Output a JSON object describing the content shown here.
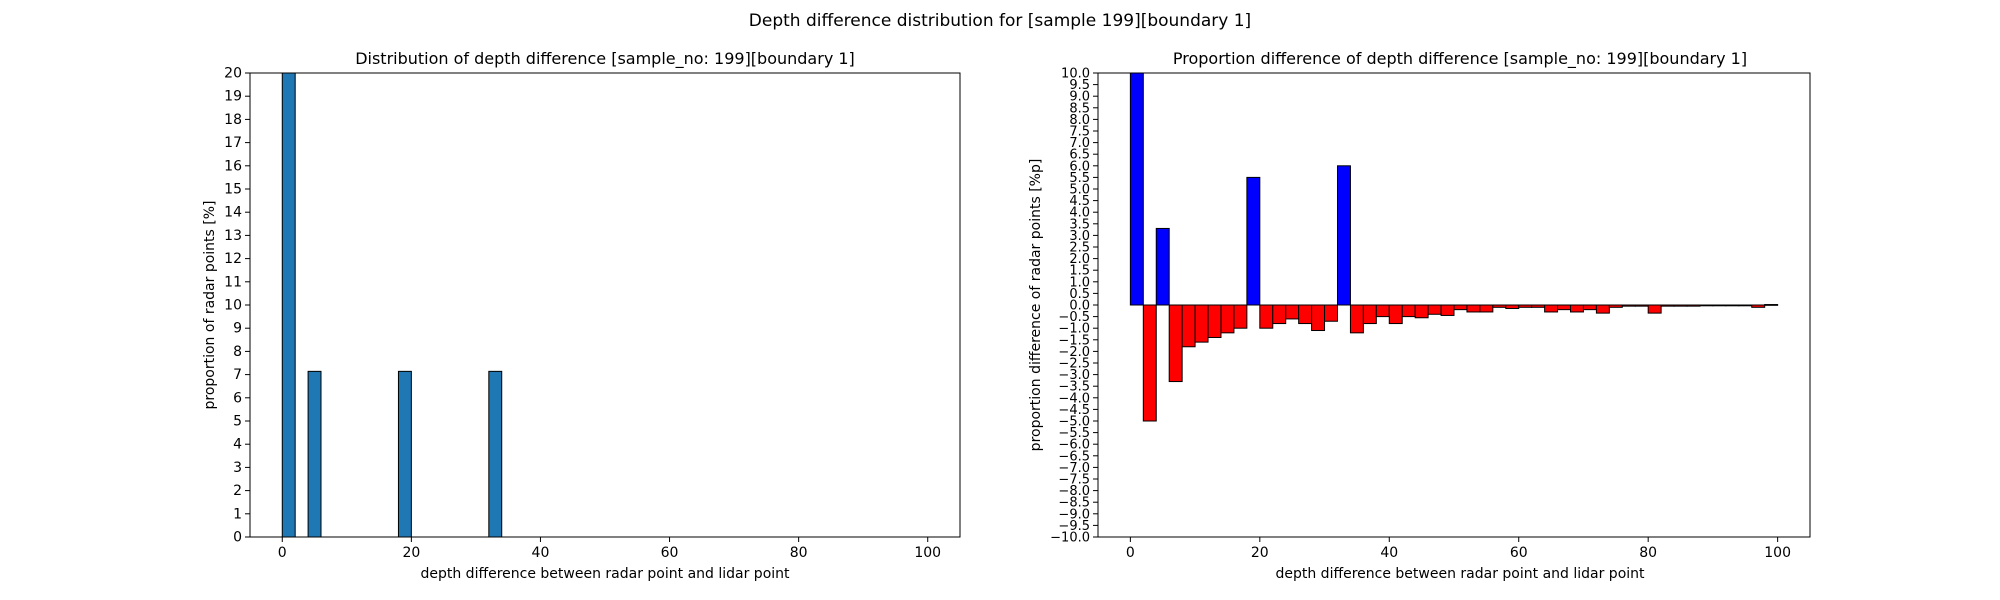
{
  "figure": {
    "suptitle": "Depth difference distribution for [sample 199][boundary 1]"
  },
  "chart_data": [
    {
      "type": "bar",
      "title": "Distribution of depth difference [sample_no: 199][boundary 1]",
      "xlabel": "depth difference between radar point and lidar point",
      "ylabel": "proportion of radar points [%]",
      "xlim": [
        -5,
        105
      ],
      "ylim": [
        0,
        20
      ],
      "xticks": [
        0,
        20,
        40,
        60,
        80,
        100
      ],
      "yticks": [
        0,
        1,
        2,
        3,
        4,
        5,
        6,
        7,
        8,
        9,
        10,
        11,
        12,
        13,
        14,
        15,
        16,
        17,
        18,
        19,
        20
      ],
      "bin_width": 2,
      "bin_starts": [
        0,
        4,
        18,
        32
      ],
      "values": [
        20,
        7.14,
        7.14,
        7.14
      ],
      "colors": {
        "bar": "#1f77b4",
        "edge": "#000000"
      }
    },
    {
      "type": "bar",
      "title": "Proportion difference of depth difference [sample_no: 199][boundary 1]",
      "xlabel": "depth difference between radar point and lidar point",
      "ylabel": "proportion difference of radar points [%p]",
      "xlim": [
        -5,
        105
      ],
      "ylim": [
        -10,
        10
      ],
      "xticks": [
        0,
        20,
        40,
        60,
        80,
        100
      ],
      "yticks": [
        -10,
        -9.5,
        -9,
        -8.5,
        -8,
        -7.5,
        -7,
        -6.5,
        -6,
        -5.5,
        -5,
        -4.5,
        -4,
        -3.5,
        -3,
        -2.5,
        -2,
        -1.5,
        -1,
        -0.5,
        0,
        0.5,
        1,
        1.5,
        2,
        2.5,
        3,
        3.5,
        4,
        4.5,
        5,
        5.5,
        6,
        6.5,
        7,
        7.5,
        8,
        8.5,
        9,
        9.5,
        10
      ],
      "bin_width": 2,
      "bin_starts": [
        0,
        2,
        4,
        6,
        8,
        10,
        12,
        14,
        16,
        18,
        20,
        22,
        24,
        26,
        28,
        30,
        32,
        34,
        36,
        38,
        40,
        42,
        44,
        46,
        48,
        50,
        52,
        54,
        56,
        58,
        60,
        62,
        64,
        66,
        68,
        70,
        72,
        74,
        76,
        78,
        80,
        82,
        84,
        86,
        88,
        90,
        92,
        94,
        96,
        98
      ],
      "values": [
        10,
        -5.0,
        3.3,
        -3.3,
        -1.8,
        -1.6,
        -1.4,
        -1.2,
        -1.0,
        5.5,
        -1.0,
        -0.8,
        -0.6,
        -0.8,
        -1.1,
        -0.7,
        6.0,
        -1.2,
        -0.8,
        -0.5,
        -0.8,
        -0.5,
        -0.55,
        -0.4,
        -0.45,
        -0.2,
        -0.3,
        -0.3,
        -0.1,
        -0.15,
        -0.1,
        -0.1,
        -0.3,
        -0.2,
        -0.3,
        -0.2,
        -0.35,
        -0.1,
        -0.05,
        -0.05,
        -0.35,
        -0.05,
        -0.05,
        -0.05,
        -0.02,
        -0.02,
        -0.02,
        -0.02,
        -0.1,
        0.02
      ],
      "colors": {
        "positive": "#0000ff",
        "negative": "#ff0000",
        "edge": "#000000"
      }
    }
  ]
}
